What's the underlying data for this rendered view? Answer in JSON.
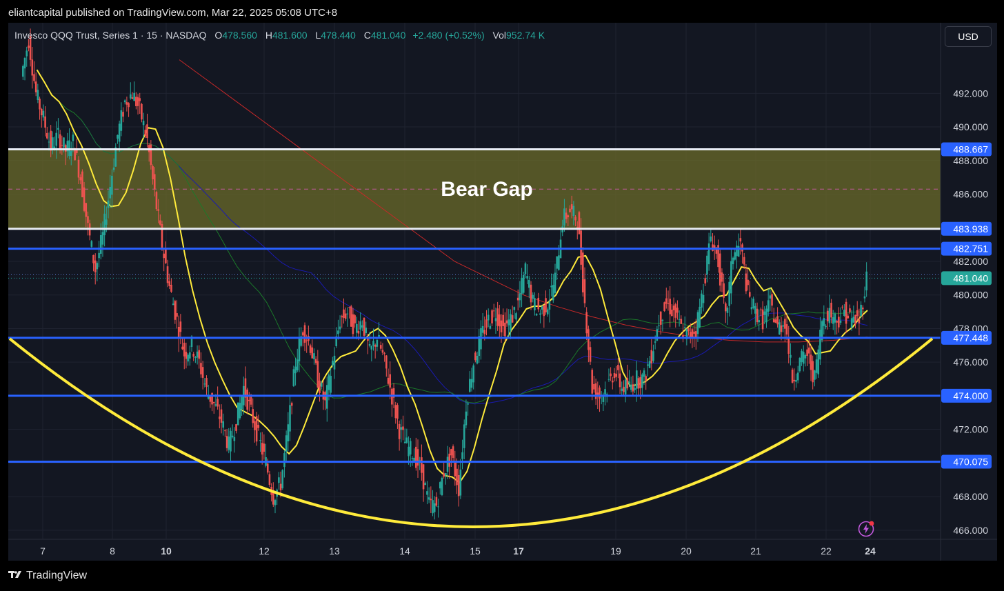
{
  "header": {
    "published": "eliantcapital published on TradingView.com, Mar 22, 2025 05:08 UTC+8"
  },
  "legend": {
    "symbol": "Invesco QQQ Trust, Series 1 · 15 · NASDAQ",
    "open_label": "O",
    "open": "478.560",
    "high_label": "H",
    "high": "481.600",
    "low_label": "L",
    "low": "478.440",
    "close_label": "C",
    "close": "481.040",
    "change": "+2.480 (+0.52%)",
    "vol_label": "Vol",
    "vol": "952.74 K"
  },
  "currency": "USD",
  "annotation": "Bear Gap",
  "footer": {
    "brand": "TradingView",
    "logo": "tv-logo-icon"
  },
  "colors": {
    "background": "#131722",
    "up": "#26a69a",
    "down": "#ef5350",
    "level_line": "#2962ff",
    "bowl": "#ffeb3b",
    "gap_zone": "#6b6b2a",
    "ma_yellow": "#ffeb3b",
    "ma_green": "#1b7a2a",
    "ma_blue": "#1a1ab0",
    "ma_red": "#c62828",
    "bolt": "#c158dc"
  },
  "chart_data": {
    "type": "candlestick",
    "title": "Invesco QQQ Trust, Series 1 · 15 · NASDAQ",
    "ylim": [
      465.5,
      496.2
    ],
    "y_ticks": [
      "492.000",
      "490.000",
      "488.000",
      "486.000",
      "484.000",
      "482.000",
      "480.000",
      "478.000",
      "476.000",
      "474.000",
      "472.000",
      "470.000",
      "468.000",
      "466.000"
    ],
    "x_ticks": [
      {
        "label": "7",
        "bold": false
      },
      {
        "label": "8",
        "bold": false
      },
      {
        "label": "10",
        "bold": true
      },
      {
        "label": "12",
        "bold": false
      },
      {
        "label": "13",
        "bold": false
      },
      {
        "label": "14",
        "bold": false
      },
      {
        "label": "15",
        "bold": false
      },
      {
        "label": "17",
        "bold": true
      },
      {
        "label": "19",
        "bold": false
      },
      {
        "label": "20",
        "bold": false
      },
      {
        "label": "21",
        "bold": false
      },
      {
        "label": "22",
        "bold": false
      },
      {
        "label": "24",
        "bold": true
      }
    ],
    "levels": [
      {
        "price": 488.667,
        "label": "488.667",
        "style": "white"
      },
      {
        "price": 483.938,
        "label": "483.938",
        "style": "white"
      },
      {
        "price": 482.751,
        "label": "482.751",
        "style": "blue"
      },
      {
        "price": 481.04,
        "label": "481.040",
        "style": "last"
      },
      {
        "price": 477.448,
        "label": "477.448",
        "style": "blue"
      },
      {
        "price": 474.0,
        "label": "474.000",
        "style": "blue"
      },
      {
        "price": 470.075,
        "label": "470.075",
        "style": "blue"
      }
    ],
    "gap_zone": {
      "top": 488.667,
      "bottom": 483.938,
      "mid": 486.3
    },
    "bowl": {
      "left_price": 477.4,
      "min_price": 466.2,
      "right_price": 477.4
    },
    "price_path": [
      [
        0,
        493.0
      ],
      [
        1,
        495.2
      ],
      [
        2,
        492.0
      ],
      [
        3,
        490.5
      ],
      [
        4,
        488.8
      ],
      [
        5,
        489.5
      ],
      [
        6,
        488.6
      ],
      [
        7,
        489.1
      ],
      [
        8,
        487.0
      ],
      [
        9,
        484.0
      ],
      [
        10,
        481.5
      ],
      [
        11,
        483.5
      ],
      [
        12,
        486.5
      ],
      [
        13,
        489.5
      ],
      [
        14,
        491.5
      ],
      [
        15,
        492.0
      ],
      [
        16,
        491.0
      ],
      [
        17,
        489.2
      ],
      [
        18,
        486.0
      ],
      [
        19,
        483.0
      ],
      [
        20,
        480.5
      ],
      [
        21,
        478.5
      ],
      [
        22,
        476.5
      ],
      [
        23,
        477.0
      ],
      [
        24,
        476.0
      ],
      [
        25,
        474.3
      ],
      [
        26,
        473.5
      ],
      [
        27,
        472.5
      ],
      [
        28,
        471.0
      ],
      [
        29,
        472.5
      ],
      [
        30,
        474.5
      ],
      [
        31,
        473.0
      ],
      [
        32,
        471.5
      ],
      [
        33,
        470.0
      ],
      [
        34,
        468.0
      ],
      [
        35,
        468.8
      ],
      [
        36,
        472.0
      ],
      [
        37,
        476.0
      ],
      [
        38,
        478.0
      ],
      [
        39,
        477.0
      ],
      [
        40,
        475.0
      ],
      [
        41,
        473.5
      ],
      [
        42,
        476.0
      ],
      [
        43,
        478.5
      ],
      [
        44,
        479.0
      ],
      [
        45,
        478.0
      ],
      [
        46,
        478.5
      ],
      [
        47,
        476.5
      ],
      [
        48,
        477.5
      ],
      [
        49,
        476.0
      ],
      [
        50,
        474.0
      ],
      [
        51,
        472.0
      ],
      [
        52,
        471.0
      ],
      [
        53,
        470.5
      ],
      [
        54,
        469.5
      ],
      [
        55,
        467.5
      ],
      [
        56,
        467.5
      ],
      [
        57,
        469.5
      ],
      [
        58,
        470.5
      ],
      [
        59,
        468.5
      ],
      [
        60,
        473.5
      ],
      [
        61,
        476.0
      ],
      [
        62,
        477.5
      ],
      [
        63,
        478.5
      ],
      [
        64,
        479.0
      ],
      [
        65,
        478.0
      ],
      [
        66,
        478.5
      ],
      [
        67,
        479.5
      ],
      [
        68,
        481.5
      ],
      [
        69,
        479.5
      ],
      [
        70,
        479.0
      ],
      [
        71,
        479.5
      ],
      [
        72,
        481.0
      ],
      [
        73,
        484.5
      ],
      [
        74,
        485.0
      ],
      [
        75,
        484.5
      ],
      [
        76,
        479.5
      ],
      [
        77,
        474.5
      ],
      [
        78,
        474.0
      ],
      [
        79,
        474.5
      ],
      [
        80,
        475.5
      ],
      [
        81,
        474.5
      ],
      [
        82,
        474.5
      ],
      [
        83,
        475.0
      ],
      [
        84,
        475.0
      ],
      [
        85,
        476.5
      ],
      [
        86,
        478.5
      ],
      [
        87,
        479.5
      ],
      [
        88,
        479.0
      ],
      [
        89,
        478.0
      ],
      [
        90,
        477.5
      ],
      [
        91,
        478.0
      ],
      [
        92,
        480.5
      ],
      [
        93,
        483.5
      ],
      [
        94,
        482.0
      ],
      [
        95,
        478.5
      ],
      [
        96,
        482.5
      ],
      [
        97,
        483.0
      ],
      [
        98,
        480.0
      ],
      [
        99,
        479.0
      ],
      [
        100,
        478.5
      ],
      [
        101,
        479.5
      ],
      [
        102,
        478.0
      ],
      [
        103,
        478.5
      ],
      [
        104,
        475.0
      ],
      [
        105,
        476.0
      ],
      [
        106,
        476.5
      ],
      [
        107,
        475.0
      ],
      [
        108,
        478.5
      ],
      [
        109,
        479.0
      ],
      [
        110,
        478.5
      ],
      [
        111,
        479.0
      ],
      [
        112,
        478.5
      ],
      [
        113,
        478.5
      ],
      [
        114,
        481.0
      ]
    ]
  }
}
